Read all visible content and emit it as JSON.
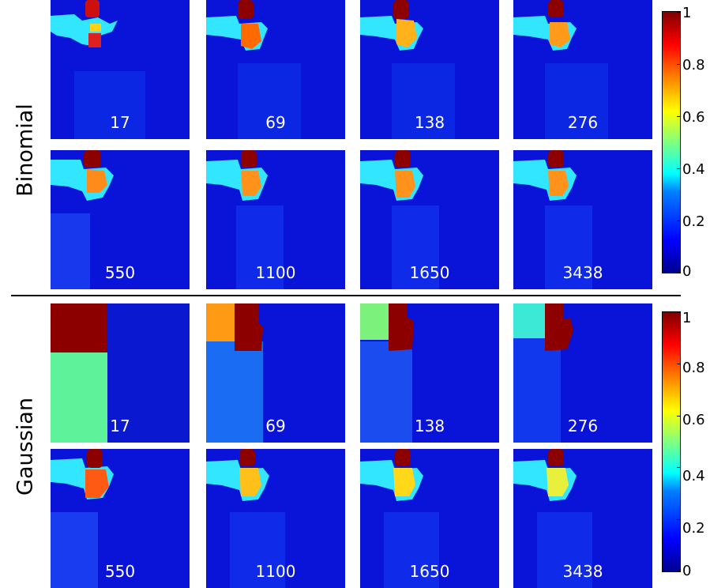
{
  "figure": {
    "row_labels": [
      "Binomial",
      "Gaussian"
    ],
    "panel_labels": {
      "binomial_top": [
        "17",
        "69",
        "138",
        "276"
      ],
      "binomial_bottom": [
        "550",
        "1100",
        "1650",
        "3438"
      ],
      "gaussian_top": [
        "17",
        "69",
        "138",
        "276"
      ],
      "gaussian_bottom": [
        "550",
        "1100",
        "1650",
        "3438"
      ]
    },
    "colorbar_ticks": [
      "1",
      "0.8",
      "0.6",
      "0.4",
      "0.2",
      "0"
    ],
    "colormap": "jet",
    "colors": {
      "background_blue": "#0a14d8",
      "dark_red": "#8c0000",
      "orange": "#ff8c1a",
      "cyan": "#33e6ff"
    }
  }
}
